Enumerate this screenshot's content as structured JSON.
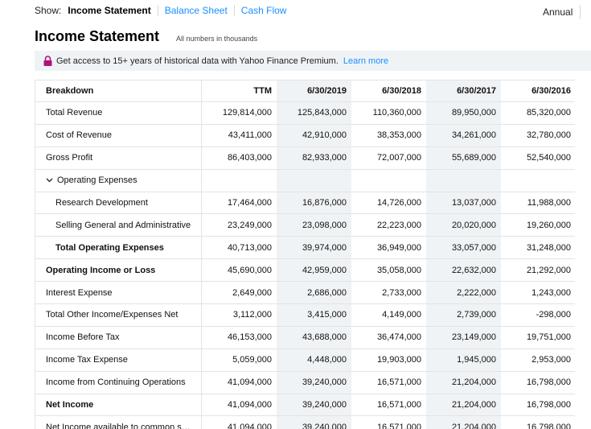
{
  "show": {
    "label": "Show:",
    "tabs": [
      "Income Statement",
      "Balance Sheet",
      "Cash Flow"
    ]
  },
  "period": "Annual",
  "title": "Income Statement",
  "units_note": "All numbers in thousands",
  "promo": {
    "text": "Get access to 15+ years of historical data with Yahoo Finance Premium.",
    "link": "Learn more"
  },
  "table": {
    "header": [
      "Breakdown",
      "TTM",
      "6/30/2019",
      "6/30/2018",
      "6/30/2017",
      "6/30/2016"
    ],
    "rows": [
      {
        "label": "Total Revenue",
        "values": [
          "129,814,000",
          "125,843,000",
          "110,360,000",
          "89,950,000",
          "85,320,000"
        ]
      },
      {
        "label": "Cost of Revenue",
        "values": [
          "43,411,000",
          "42,910,000",
          "38,353,000",
          "34,261,000",
          "32,780,000"
        ]
      },
      {
        "label": "Gross Profit",
        "values": [
          "86,403,000",
          "82,933,000",
          "72,007,000",
          "55,689,000",
          "52,540,000"
        ]
      },
      {
        "label": "Operating Expenses",
        "values": [
          "",
          "",
          "",
          "",
          ""
        ],
        "expandable": true
      },
      {
        "label": "Research Development",
        "values": [
          "17,464,000",
          "16,876,000",
          "14,726,000",
          "13,037,000",
          "11,988,000"
        ],
        "indent": true
      },
      {
        "label": "Selling General and Administrative",
        "values": [
          "23,249,000",
          "23,098,000",
          "22,223,000",
          "20,020,000",
          "19,260,000"
        ],
        "indent": true
      },
      {
        "label": "Total Operating Expenses",
        "values": [
          "40,713,000",
          "39,974,000",
          "36,949,000",
          "33,057,000",
          "31,248,000"
        ],
        "indent": true,
        "bold": true
      },
      {
        "label": "Operating Income or Loss",
        "values": [
          "45,690,000",
          "42,959,000",
          "35,058,000",
          "22,632,000",
          "21,292,000"
        ],
        "bold": true
      },
      {
        "label": "Interest Expense",
        "values": [
          "2,649,000",
          "2,686,000",
          "2,733,000",
          "2,222,000",
          "1,243,000"
        ]
      },
      {
        "label": "Total Other Income/Expenses Net",
        "values": [
          "3,112,000",
          "3,415,000",
          "4,149,000",
          "2,739,000",
          "-298,000"
        ]
      },
      {
        "label": "Income Before Tax",
        "values": [
          "46,153,000",
          "43,688,000",
          "36,474,000",
          "23,149,000",
          "19,751,000"
        ]
      },
      {
        "label": "Income Tax Expense",
        "values": [
          "5,059,000",
          "4,448,000",
          "19,903,000",
          "1,945,000",
          "2,953,000"
        ]
      },
      {
        "label": "Income from Continuing Operations",
        "values": [
          "41,094,000",
          "39,240,000",
          "16,571,000",
          "21,204,000",
          "16,798,000"
        ]
      },
      {
        "label": "Net Income",
        "values": [
          "41,094,000",
          "39,240,000",
          "16,571,000",
          "21,204,000",
          "16,798,000"
        ],
        "bold": true
      },
      {
        "label": "Net Income available to common s…",
        "values": [
          "41,094,000",
          "39,240,000",
          "16,571,000",
          "21,204,000",
          "16,798,000"
        ]
      }
    ]
  },
  "colors": {
    "accent": "#188fff",
    "alt_column": "#f0f3f5",
    "border": "#e3e3e3"
  }
}
